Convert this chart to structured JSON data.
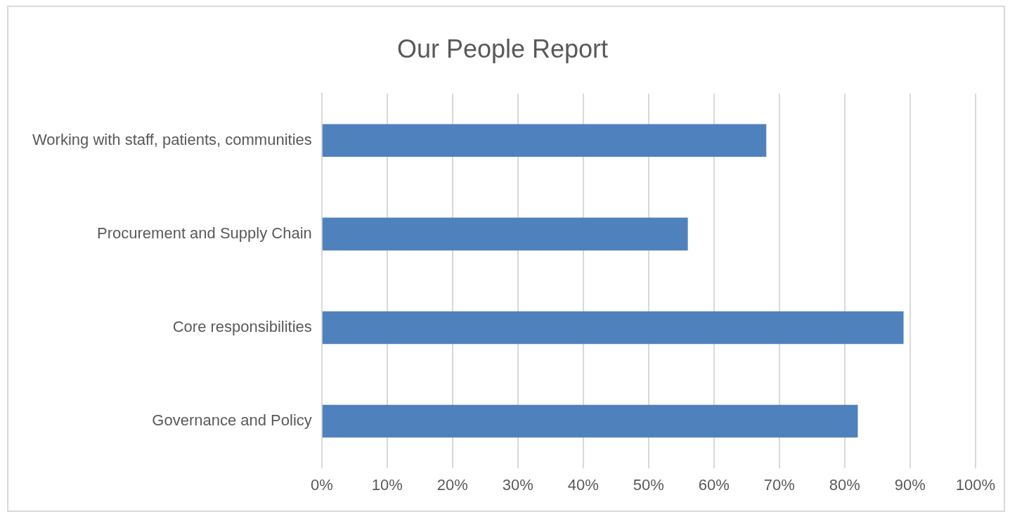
{
  "chart_data": {
    "type": "bar",
    "orientation": "horizontal",
    "title": "Our People Report",
    "categories": [
      "Working with staff, patients, communities",
      "Procurement and Supply Chain",
      "Core responsibilities",
      "Governance and Policy"
    ],
    "values": [
      68,
      56,
      89,
      82
    ],
    "color": "#4f81bd",
    "xlim": [
      0,
      100
    ],
    "xticks": [
      {
        "value": 0,
        "label": "0%"
      },
      {
        "value": 10,
        "label": "10%"
      },
      {
        "value": 20,
        "label": "20%"
      },
      {
        "value": 30,
        "label": "30%"
      },
      {
        "value": 40,
        "label": "40%"
      },
      {
        "value": 50,
        "label": "50%"
      },
      {
        "value": 60,
        "label": "60%"
      },
      {
        "value": 70,
        "label": "70%"
      },
      {
        "value": 80,
        "label": "80%"
      },
      {
        "value": 90,
        "label": "90%"
      },
      {
        "value": 100,
        "label": "100%"
      }
    ],
    "grid": "x",
    "legend": false
  }
}
